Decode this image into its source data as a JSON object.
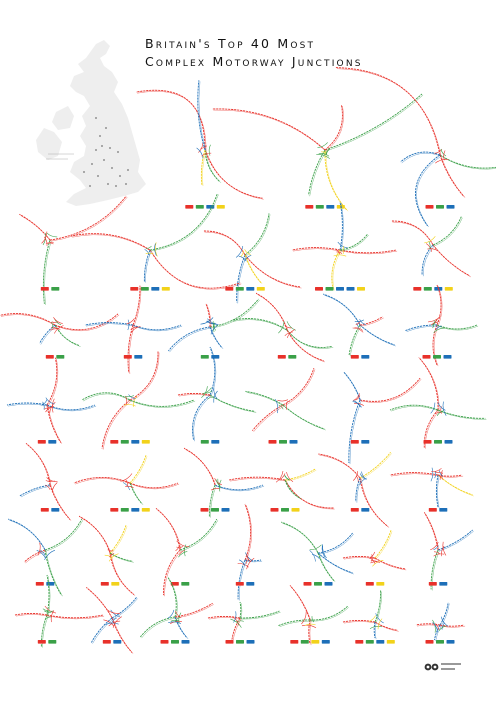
{
  "title": {
    "line1": "Britain's Top 40 Most",
    "line2": "Complex Motorway Junctions"
  },
  "colors": {
    "motorway_red": "#e8312a",
    "motorway_green": "#3aa048",
    "motorway_blue": "#1d6fb8",
    "motorway_yellow": "#f2d21a",
    "map_land": "#eeeeee",
    "background": "#ffffff"
  },
  "junction_count": 40,
  "icons": [
    "uk-map-icon",
    "publisher-logo-icon"
  ]
}
